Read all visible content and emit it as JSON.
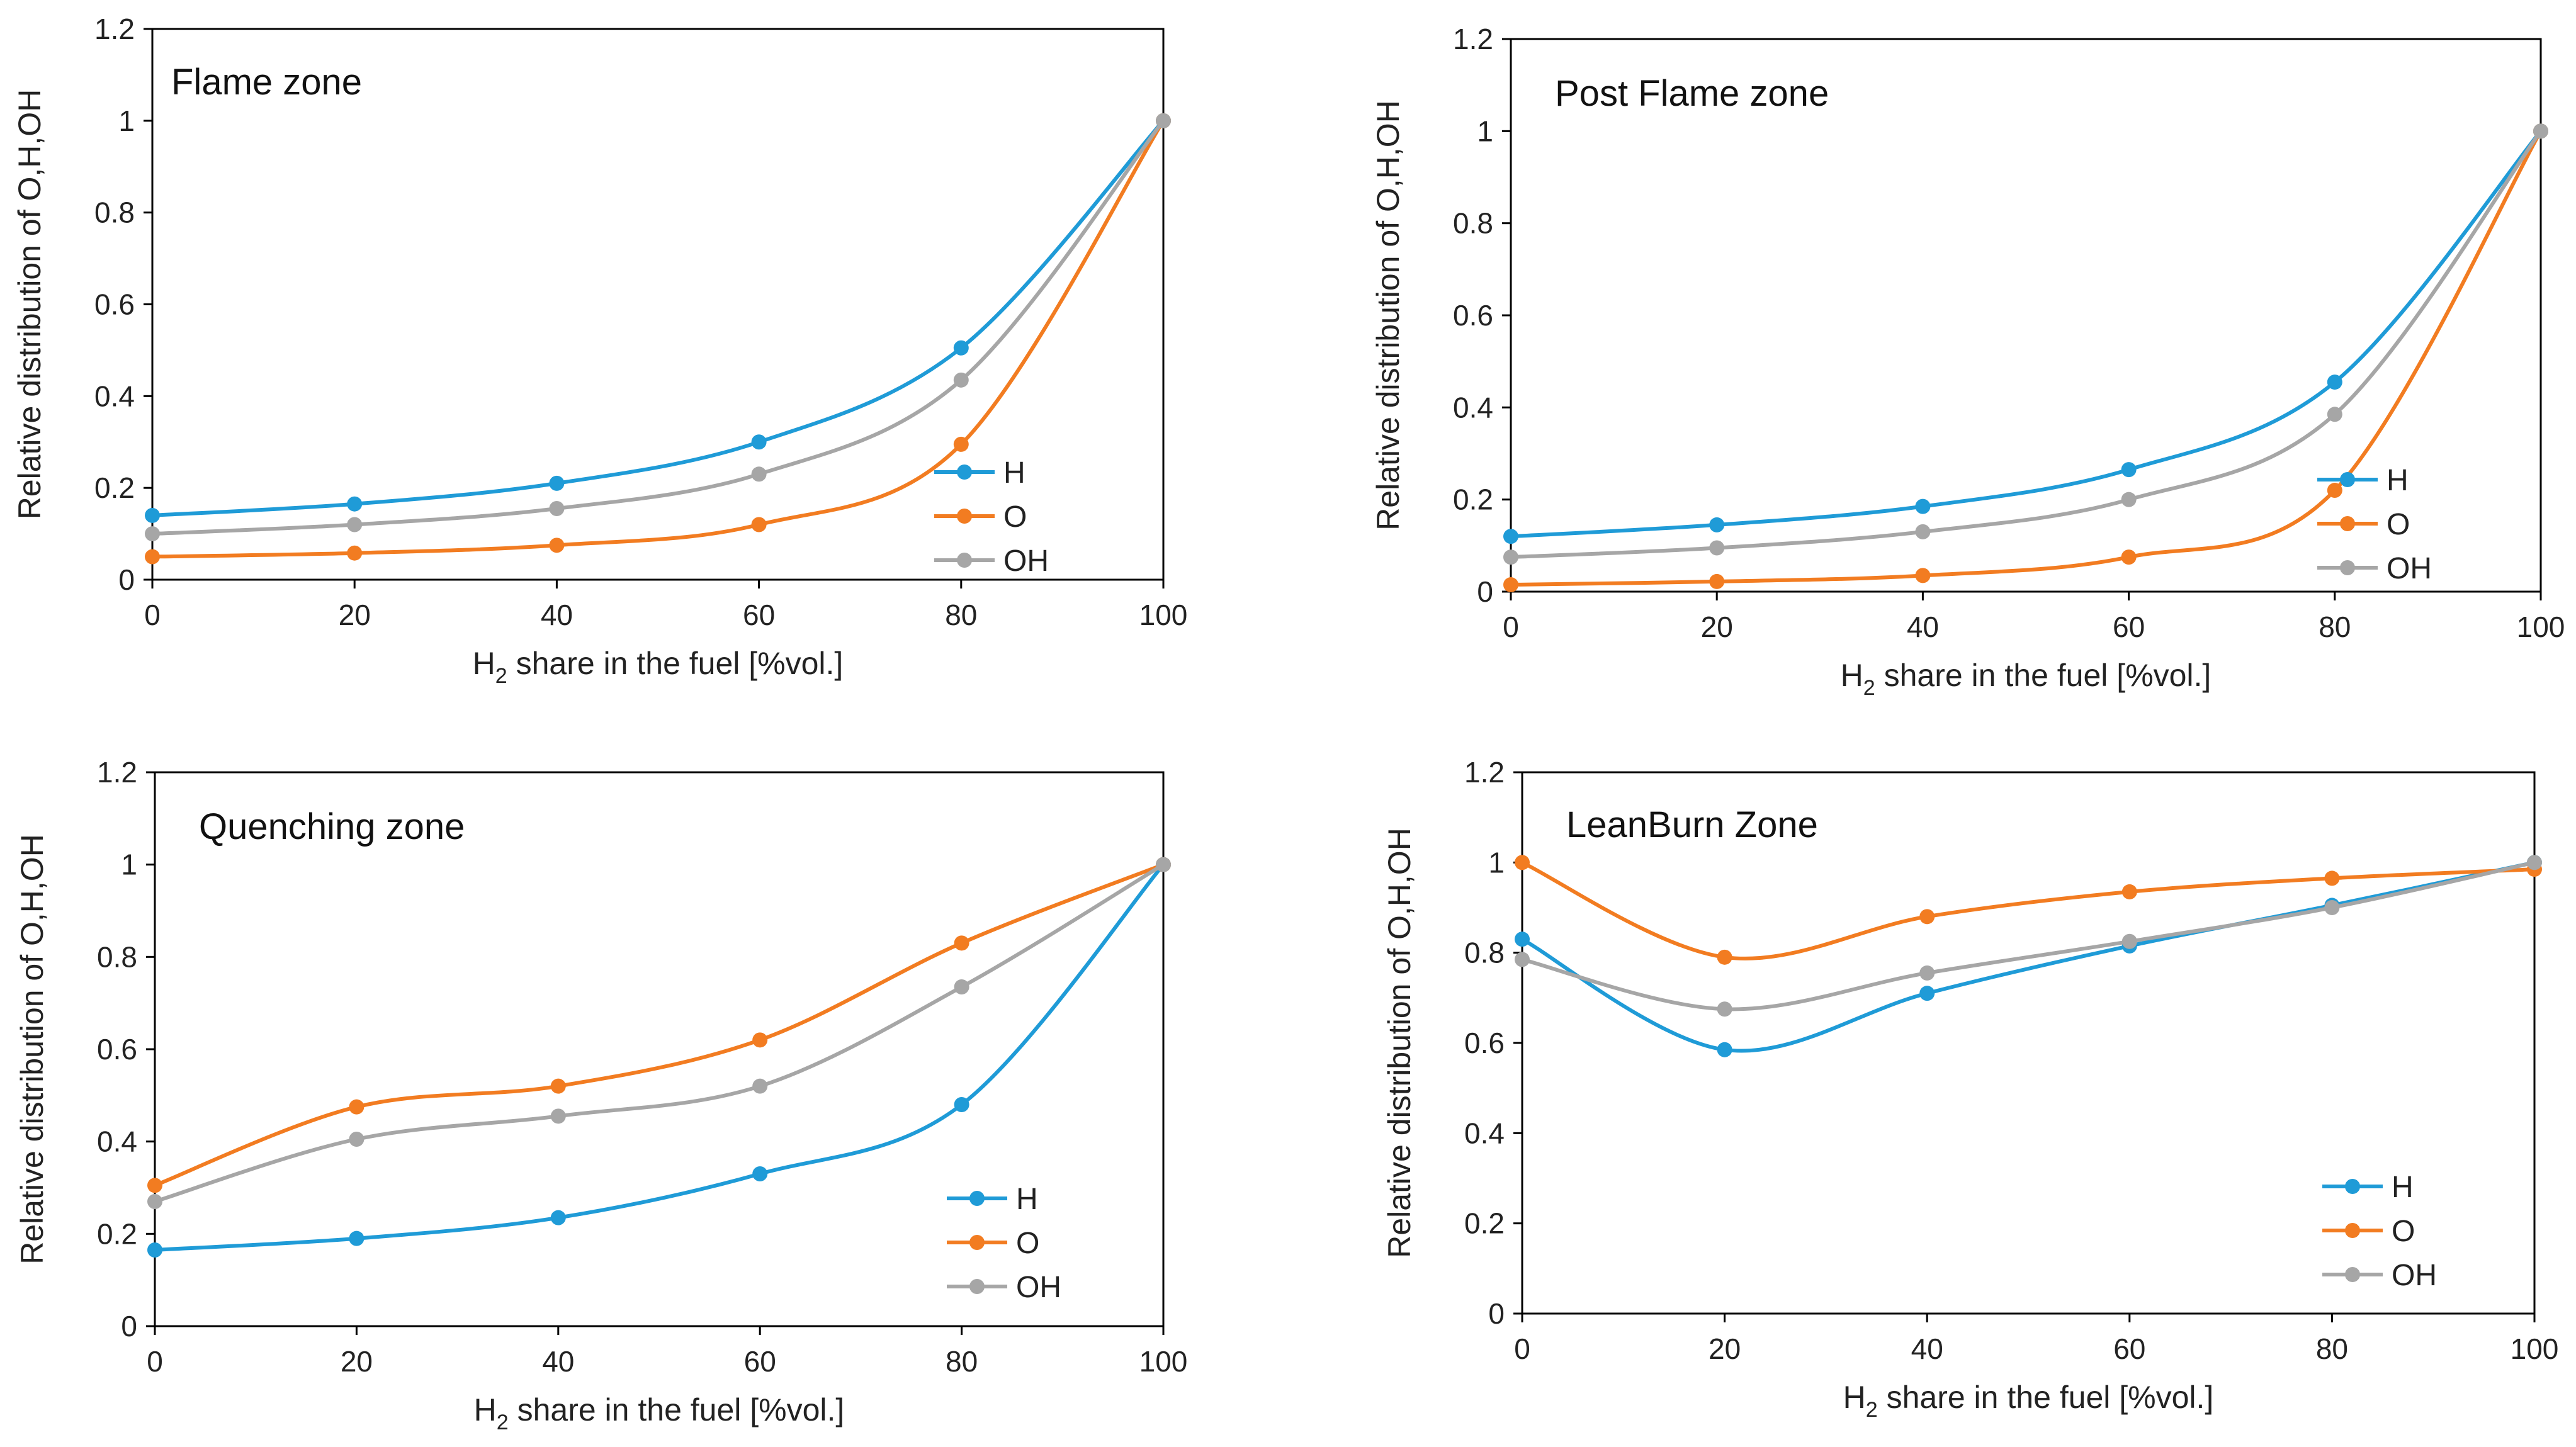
{
  "colors": {
    "H": "#1F9BD7",
    "O": "#F27C21",
    "OH": "#A6A6A6"
  },
  "chart_data": [
    {
      "type": "line",
      "title": "Flame zone",
      "xlabel": "H2 share in the fuel [%vol.]",
      "xlabel_main": "H",
      "xlabel_sub": "2",
      "xlabel_rest": " share in the fuel [%vol.]",
      "ylabel": "Relative distribution of O,H,OH",
      "x": [
        0,
        20,
        40,
        60,
        80,
        100
      ],
      "xticks": [
        "0",
        "20",
        "40",
        "60",
        "80",
        "100"
      ],
      "yticks": [
        "0",
        "0.2",
        "0.4",
        "0.6",
        "0.8",
        "1",
        "1.2"
      ],
      "xlim": [
        0,
        100
      ],
      "ylim": [
        0,
        1.2
      ],
      "legend": "right",
      "series": [
        {
          "name": "H",
          "values": [
            0.14,
            0.165,
            0.21,
            0.3,
            0.505,
            1.0
          ]
        },
        {
          "name": "O",
          "values": [
            0.05,
            0.058,
            0.075,
            0.12,
            0.295,
            1.0
          ]
        },
        {
          "name": "OH",
          "values": [
            0.1,
            0.12,
            0.155,
            0.23,
            0.435,
            1.0
          ]
        }
      ]
    },
    {
      "type": "line",
      "title": "Post Flame zone",
      "xlabel": "H2 share in the fuel [%vol.]",
      "xlabel_main": "H",
      "xlabel_sub": "2",
      "xlabel_rest": " share in the fuel [%vol.]",
      "ylabel": "Relative distribution of O,H,OH",
      "x": [
        0,
        20,
        40,
        60,
        80,
        100
      ],
      "xticks": [
        "0",
        "20",
        "40",
        "60",
        "80",
        "100"
      ],
      "yticks": [
        "0",
        "0.2",
        "0.4",
        "0.6",
        "0.8",
        "1",
        "1.2"
      ],
      "xlim": [
        0,
        100
      ],
      "ylim": [
        0,
        1.2
      ],
      "legend": "right",
      "series": [
        {
          "name": "H",
          "values": [
            0.12,
            0.145,
            0.185,
            0.265,
            0.455,
            1.0
          ]
        },
        {
          "name": "O",
          "values": [
            0.015,
            0.022,
            0.035,
            0.075,
            0.22,
            1.0
          ]
        },
        {
          "name": "OH",
          "values": [
            0.075,
            0.095,
            0.13,
            0.2,
            0.385,
            1.0
          ]
        }
      ]
    },
    {
      "type": "line",
      "title": "Quenching zone",
      "xlabel": "H2 share in the fuel [%vol.]",
      "xlabel_main": "H",
      "xlabel_sub": "2",
      "xlabel_rest": " share in the fuel [%vol.]",
      "ylabel": "Relative distribution of O,H,OH",
      "x": [
        0,
        20,
        40,
        60,
        80,
        100
      ],
      "xticks": [
        "0",
        "20",
        "40",
        "60",
        "80",
        "100"
      ],
      "yticks": [
        "0",
        "0.2",
        "0.4",
        "0.6",
        "0.8",
        "1",
        "1.2"
      ],
      "xlim": [
        0,
        100
      ],
      "ylim": [
        0,
        1.2
      ],
      "legend": "right",
      "series": [
        {
          "name": "H",
          "values": [
            0.165,
            0.19,
            0.235,
            0.33,
            0.48,
            1.0
          ]
        },
        {
          "name": "O",
          "values": [
            0.305,
            0.475,
            0.52,
            0.62,
            0.83,
            1.0
          ]
        },
        {
          "name": "OH",
          "values": [
            0.27,
            0.405,
            0.455,
            0.52,
            0.735,
            1.0
          ]
        }
      ]
    },
    {
      "type": "line",
      "title": "LeanBurn Zone",
      "xlabel": "H2 share in the fuel [%vol.]",
      "xlabel_main": "H",
      "xlabel_sub": "2",
      "xlabel_rest": " share in the fuel [%vol.]",
      "ylabel": "Relative distribution of O,H,OH",
      "x": [
        0,
        20,
        40,
        60,
        80,
        100
      ],
      "xticks": [
        "0",
        "20",
        "40",
        "60",
        "80",
        "100"
      ],
      "yticks": [
        "0",
        "0.2",
        "0.4",
        "0.6",
        "0.8",
        "1",
        "1.2"
      ],
      "xlim": [
        0,
        100
      ],
      "ylim": [
        0,
        1.2
      ],
      "legend": "right",
      "series": [
        {
          "name": "H",
          "values": [
            0.83,
            0.585,
            0.71,
            0.815,
            0.905,
            1.0
          ]
        },
        {
          "name": "O",
          "values": [
            1.0,
            0.79,
            0.88,
            0.935,
            0.965,
            0.985
          ]
        },
        {
          "name": "OH",
          "values": [
            0.785,
            0.675,
            0.755,
            0.825,
            0.9,
            1.0
          ]
        }
      ]
    }
  ]
}
